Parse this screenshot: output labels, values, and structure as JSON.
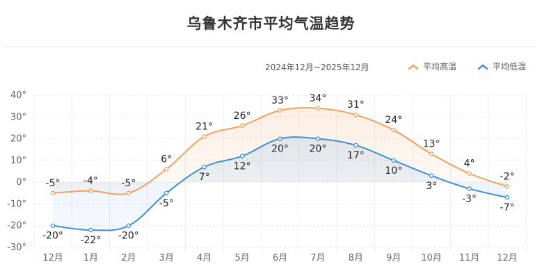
{
  "title": "乌鲁木齐市平均气温趋势",
  "range_label": "2024年12月~2025年12月",
  "legend": [
    {
      "label": "平均高温",
      "color": "#F0A15E",
      "icon": "chevron-up-icon"
    },
    {
      "label": "平均低温",
      "color": "#3E8ED8",
      "icon": "chevron-up-icon"
    }
  ],
  "chart_data": {
    "type": "line",
    "title": "乌鲁木齐市平均气温趋势",
    "subtitle": "2024年12月~2025年12月",
    "categories": [
      "12月",
      "1月",
      "2月",
      "3月",
      "4月",
      "5月",
      "6月",
      "7月",
      "8月",
      "9月",
      "10月",
      "11月",
      "12月"
    ],
    "series": [
      {
        "name": "平均高温",
        "color": "#F0A15E",
        "values": [
          -5,
          -4,
          -5,
          6,
          21,
          26,
          33,
          34,
          31,
          24,
          13,
          4,
          -2
        ]
      },
      {
        "name": "平均低温",
        "color": "#3E8ED8",
        "values": [
          -20,
          -22,
          -20,
          -5,
          7,
          12,
          20,
          20,
          17,
          10,
          3,
          -3,
          -7
        ]
      }
    ],
    "xlabel": "",
    "ylabel": "",
    "ylim": [
      -30,
      40
    ],
    "yticks": [
      40,
      30,
      20,
      10,
      0,
      -10,
      -20,
      -30
    ],
    "ytick_suffix": "°",
    "grid": true,
    "smooth": true,
    "area_fill": true,
    "legend_position": "top-right"
  }
}
